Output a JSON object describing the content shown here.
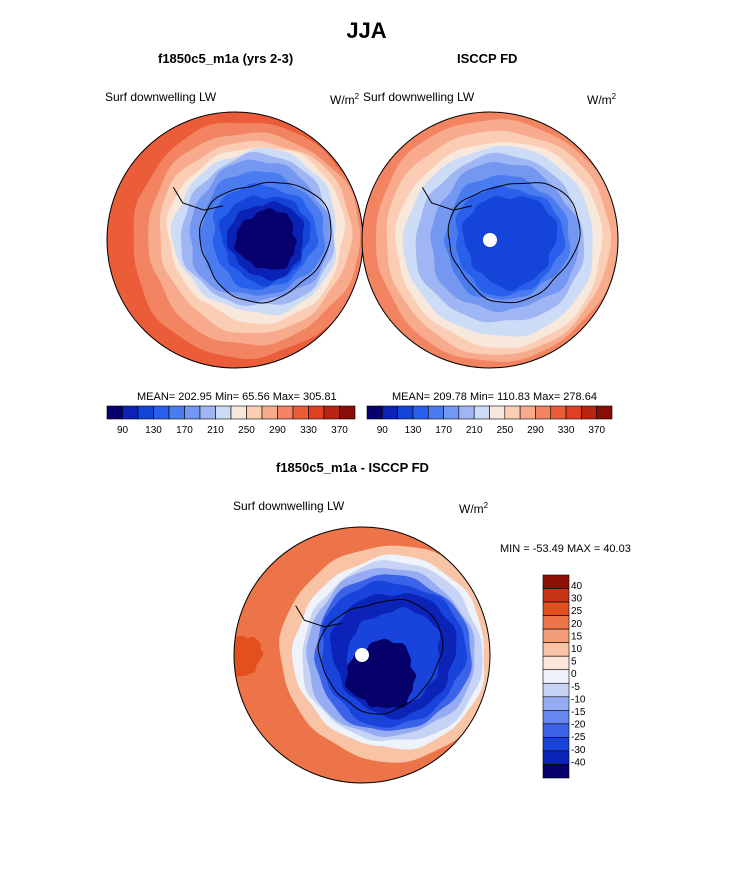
{
  "title": "JJA",
  "colors": {
    "palette": [
      "#08006e",
      "#0a22b5",
      "#1444d8",
      "#2860ec",
      "#4a7cf0",
      "#7497f2",
      "#a0b6f4",
      "#cddcf6",
      "#f8e8dc",
      "#fbcdb4",
      "#f7ab8c",
      "#f28462",
      "#ea5d38",
      "#e0401f",
      "#b82512",
      "#890c08"
    ],
    "diff_palette": [
      "#06006a",
      "#0c23b8",
      "#1944dc",
      "#3a63e8",
      "#6687ee",
      "#95acf2",
      "#c6d3f4",
      "#eef2fb",
      "#fbe6d8",
      "#f9c3a5",
      "#f39d78",
      "#ec7448",
      "#e2501f",
      "#c53414",
      "#8e1106"
    ]
  },
  "chart_data": [
    {
      "type": "heatmap",
      "projection": "south-polar-stereographic",
      "title": "f1850c5_m1a (yrs 2-3)",
      "field_label": "Surf downwelling LW",
      "units": "W/m",
      "units_power": "2",
      "stats": {
        "mean": 202.95,
        "min": 65.56,
        "max": 305.81
      },
      "stats_text": "MEAN= 202.95  Min=  65.56  Max= 305.81",
      "colorbar": {
        "levels": [
          90,
          100,
          110,
          120,
          130,
          140,
          150,
          160,
          170,
          180,
          190,
          200,
          210,
          220,
          230,
          240,
          250,
          260,
          270,
          280,
          290,
          300,
          310,
          320,
          330,
          340,
          350,
          360,
          370
        ],
        "tick_labels": [
          "90",
          "130",
          "170",
          "210",
          "250",
          "290",
          "330",
          "370"
        ]
      }
    },
    {
      "type": "heatmap",
      "projection": "south-polar-stereographic",
      "title": "ISCCP FD",
      "field_label": "Surf downwelling LW",
      "units": "W/m",
      "units_power": "2",
      "stats": {
        "mean": 209.78,
        "min": 110.83,
        "max": 278.64
      },
      "stats_text": "MEAN= 209.78  Min= 110.83  Max= 278.64",
      "colorbar": {
        "levels": [
          90,
          100,
          110,
          120,
          130,
          140,
          150,
          160,
          170,
          180,
          190,
          200,
          210,
          220,
          230,
          240,
          250,
          260,
          270,
          280,
          290,
          300,
          310,
          320,
          330,
          340,
          350,
          360,
          370
        ],
        "tick_labels": [
          "90",
          "130",
          "170",
          "210",
          "250",
          "290",
          "330",
          "370"
        ]
      }
    },
    {
      "type": "heatmap",
      "projection": "south-polar-stereographic",
      "title": "f1850c5_m1a - ISCCP FD",
      "field_label": "Surf downwelling LW",
      "units": "W/m",
      "units_power": "2",
      "stats": {
        "min": -53.49,
        "max": 40.03
      },
      "stats_text": "MIN = -53.49 MAX =  40.03",
      "colorbar": {
        "levels": [
          -40,
          -30,
          -25,
          -20,
          -15,
          -10,
          -5,
          0,
          5,
          10,
          15,
          20,
          25,
          30,
          40
        ],
        "tick_labels": [
          "40",
          "30",
          "25",
          "20",
          "15",
          "10",
          "5",
          "0",
          "-5",
          "-10",
          "-15",
          "-20",
          "-25",
          "-30",
          "-40"
        ]
      }
    }
  ]
}
